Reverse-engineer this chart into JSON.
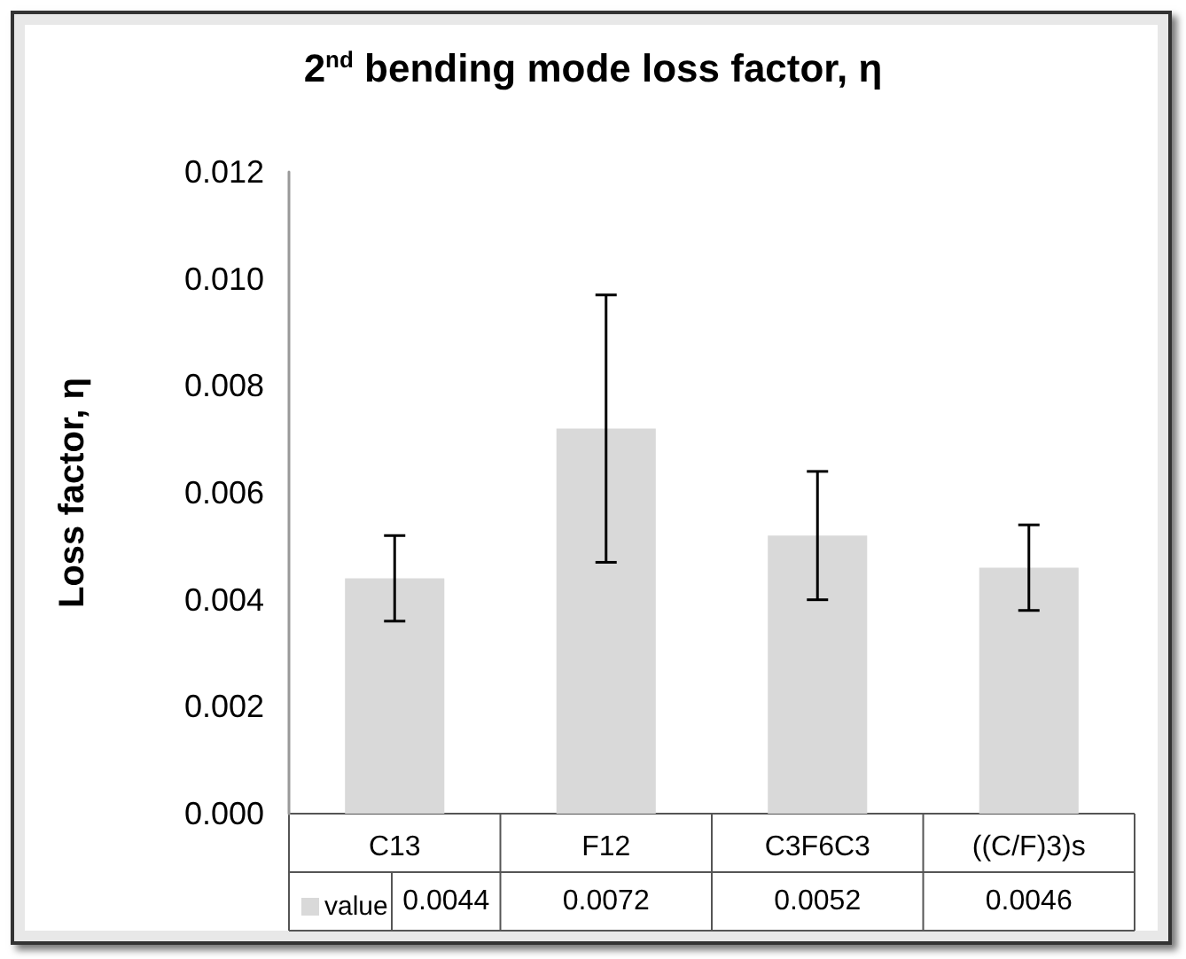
{
  "chart_data": {
    "type": "bar",
    "title": "2$^{nd}$ bending mode loss factor, η",
    "ylabel": "Loss factor, η",
    "categories": [
      "C13",
      "F12",
      "C3F6C3",
      "((C/F)3)s"
    ],
    "series": [
      {
        "name": "value",
        "color": "#d9d9d9",
        "values": [
          0.0044,
          0.0072,
          0.0052,
          0.0046
        ],
        "errors": [
          0.0008,
          0.0025,
          0.0012,
          0.0008
        ]
      }
    ],
    "ylim": [
      0,
      0.012
    ],
    "yticks": [
      {
        "value": 0,
        "label": "0.000"
      },
      {
        "value": 0.002,
        "label": "0.002"
      },
      {
        "value": 0.004,
        "label": "0.004"
      },
      {
        "value": 0.006,
        "label": "0.006"
      },
      {
        "value": 0.008,
        "label": "0.008"
      },
      {
        "value": 0.01,
        "label": "0.010"
      },
      {
        "value": 0.012,
        "label": "0.012"
      }
    ],
    "grid": false,
    "legend": "bottom",
    "data_labels": true
  }
}
